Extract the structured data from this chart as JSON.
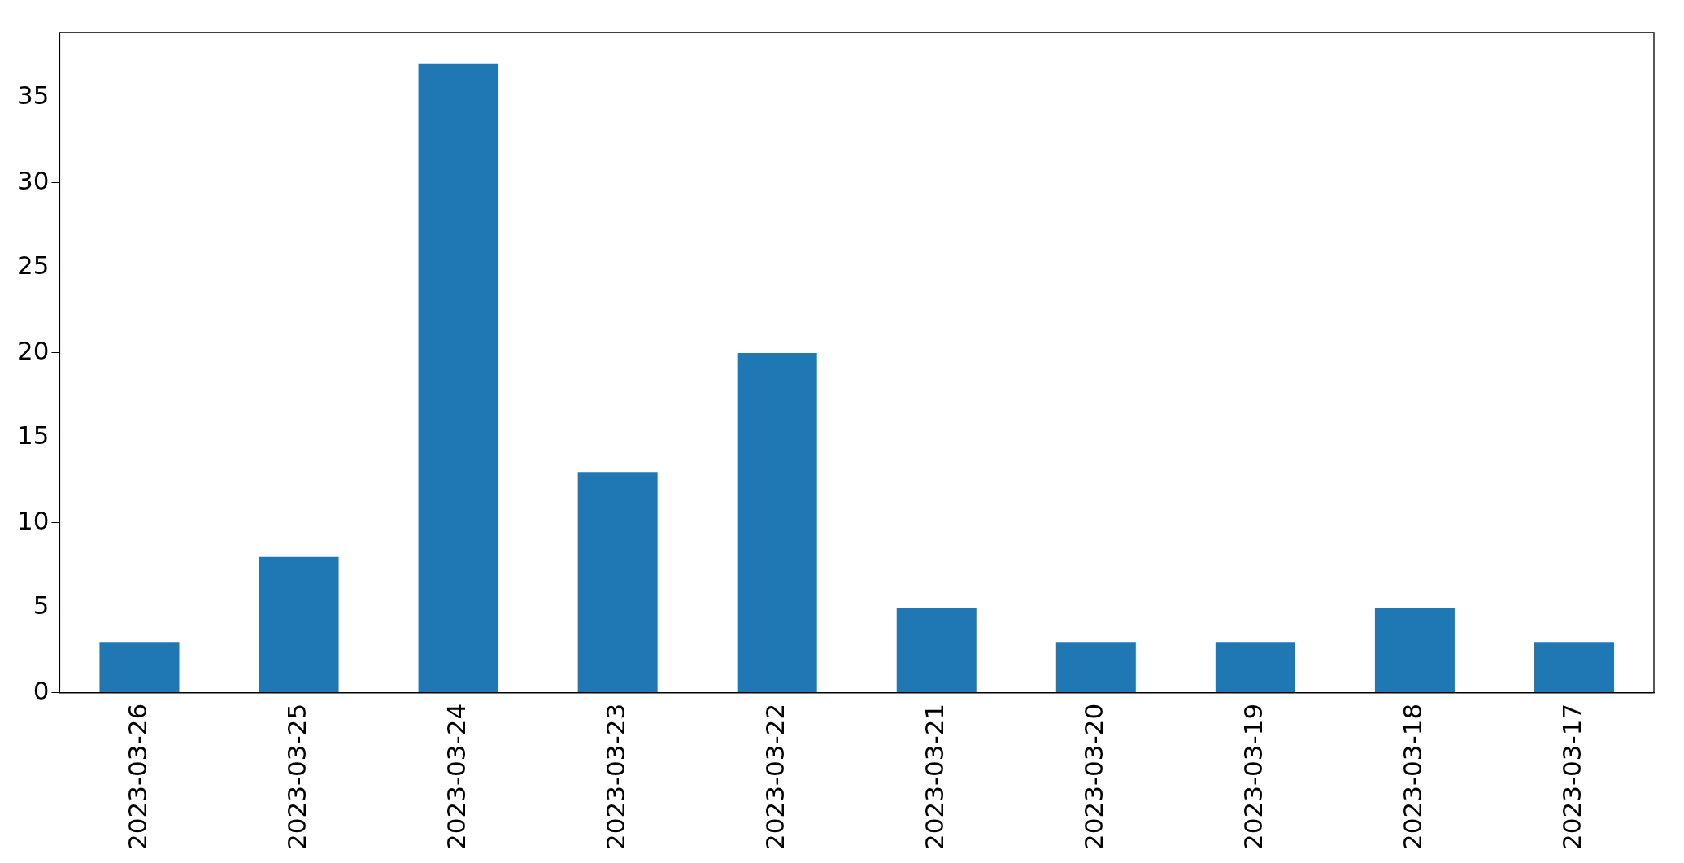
{
  "chart_data": {
    "type": "bar",
    "categories": [
      "2023-03-26",
      "2023-03-25",
      "2023-03-24",
      "2023-03-23",
      "2023-03-22",
      "2023-03-21",
      "2023-03-20",
      "2023-03-19",
      "2023-03-18",
      "2023-03-17"
    ],
    "values": [
      3,
      8,
      37,
      13,
      20,
      5,
      3,
      3,
      5,
      3
    ],
    "color": "#1f77b4",
    "ylim": [
      0,
      38.85
    ],
    "yticks": [
      0,
      5,
      10,
      15,
      20,
      25,
      30,
      35
    ],
    "grid": false,
    "legend": false
  }
}
